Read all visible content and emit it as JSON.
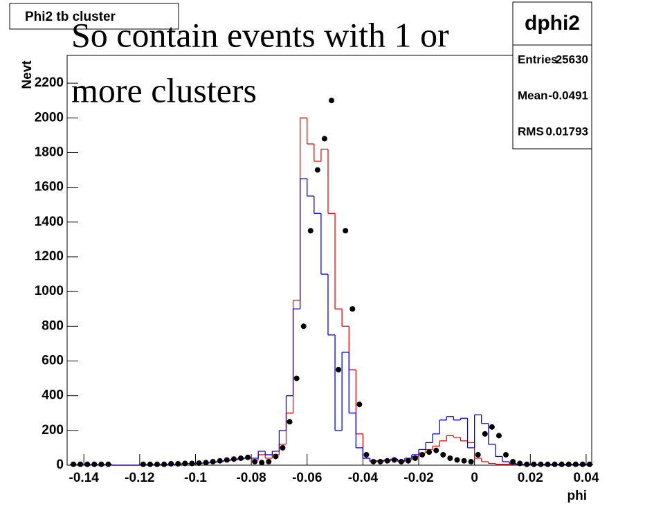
{
  "chart_data": {
    "type": "histogram",
    "title": "Phi2 tb cluster",
    "annotation": [
      "So contain events with 1 or",
      "more clusters"
    ],
    "xlabel": "phi",
    "ylabel": "Nevt",
    "stats": {
      "name": "dphi2",
      "rows": [
        [
          "Entries",
          25630
        ],
        [
          "Mean",
          -0.0491
        ],
        [
          "RMS",
          0.01793
        ]
      ]
    },
    "bins": [
      -0.145,
      -0.1425,
      -0.14,
      -0.1375,
      -0.135,
      -0.1325,
      -0.13,
      -0.1275,
      -0.125,
      -0.1225,
      -0.12,
      -0.1175,
      -0.115,
      -0.1125,
      -0.11,
      -0.1075,
      -0.105,
      -0.1025,
      -0.1,
      -0.0975,
      -0.095,
      -0.0925,
      -0.09,
      -0.0875,
      -0.085,
      -0.0825,
      -0.08,
      -0.0775,
      -0.075,
      -0.0725,
      -0.07,
      -0.0675,
      -0.065,
      -0.0625,
      -0.06,
      -0.0575,
      -0.055,
      -0.0525,
      -0.05,
      -0.0475,
      -0.045,
      -0.0425,
      -0.04,
      -0.0375,
      -0.035,
      -0.0325,
      -0.03,
      -0.0275,
      -0.025,
      -0.0225,
      -0.02,
      -0.0175,
      -0.015,
      -0.0125,
      -0.01,
      -0.0075,
      -0.005,
      -0.0025,
      0,
      0.0025,
      0.005,
      0.0075,
      0.01,
      0.0125,
      0.015,
      0.0175,
      0.02,
      0.0225,
      0.025,
      0.0275,
      0.03,
      0.0325,
      0.035,
      0.0375,
      0.04,
      0.0425
    ],
    "series": [
      {
        "style": "step",
        "color": "#ff0000",
        "values": [
          3,
          3,
          3,
          3,
          3,
          3,
          0,
          0,
          0,
          0,
          3,
          3,
          3,
          3,
          5,
          5,
          8,
          8,
          10,
          12,
          15,
          20,
          25,
          30,
          35,
          40,
          30,
          60,
          40,
          60,
          120,
          300,
          950,
          2000,
          1850,
          1750,
          1820,
          1450,
          900,
          800,
          550,
          180,
          40,
          20,
          20,
          25,
          30,
          20,
          30,
          50,
          70,
          90,
          110,
          140,
          170,
          160,
          140,
          130,
          40,
          20,
          10,
          5,
          5,
          5,
          5,
          5,
          5,
          5,
          5,
          5,
          5,
          5,
          5,
          5,
          5
        ]
      },
      {
        "style": "step",
        "color": "#0000ff",
        "values": [
          4,
          4,
          4,
          4,
          4,
          4,
          0,
          0,
          0,
          0,
          4,
          4,
          4,
          4,
          6,
          6,
          9,
          9,
          11,
          14,
          18,
          22,
          28,
          32,
          38,
          42,
          40,
          80,
          60,
          80,
          200,
          400,
          900,
          1650,
          1550,
          1450,
          1100,
          750,
          200,
          650,
          300,
          100,
          40,
          25,
          25,
          30,
          35,
          25,
          40,
          60,
          90,
          130,
          180,
          260,
          280,
          260,
          270,
          100,
          290,
          240,
          120,
          50,
          20,
          10,
          5,
          5,
          5,
          5,
          5,
          5,
          5,
          5,
          5,
          5,
          5
        ]
      },
      {
        "style": "points",
        "color": "#000000",
        "values": [
          5,
          5,
          5,
          5,
          5,
          5,
          0,
          0,
          0,
          0,
          5,
          5,
          5,
          5,
          8,
          8,
          10,
          10,
          12,
          15,
          20,
          25,
          30,
          35,
          40,
          45,
          20,
          15,
          20,
          50,
          100,
          250,
          500,
          800,
          1350,
          1700,
          1880,
          2100,
          550,
          1350,
          900,
          350,
          60,
          20,
          20,
          25,
          30,
          20,
          25,
          40,
          60,
          75,
          85,
          60,
          40,
          30,
          25,
          20,
          60,
          180,
          220,
          170,
          60,
          20,
          10,
          5,
          5,
          5,
          5,
          5,
          5,
          5,
          5,
          5,
          5
        ]
      }
    ],
    "xlim": [
      -0.146,
      0.042
    ],
    "ylim": [
      0,
      2360
    ],
    "xticks": [
      -0.14,
      -0.12,
      -0.1,
      -0.08,
      -0.06,
      -0.04,
      -0.02,
      0,
      0.02,
      0.04
    ],
    "yticks": [
      0,
      200,
      400,
      600,
      800,
      1000,
      1200,
      1400,
      1600,
      1800,
      2000,
      2200
    ]
  }
}
